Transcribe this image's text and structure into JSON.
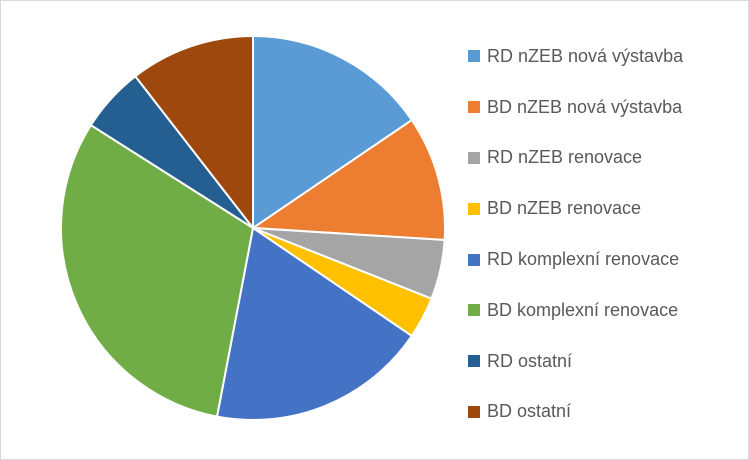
{
  "chart_data": {
    "type": "pie",
    "title": "",
    "legend_position": "right",
    "series": [
      {
        "name": "RD nZEB nová výstavba",
        "value": 15.5,
        "color": "#5b9bd5"
      },
      {
        "name": "BD nZEB nová výstavba",
        "value": 10.5,
        "color": "#ed7d31"
      },
      {
        "name": "RD nZEB renovace",
        "value": 5.0,
        "color": "#a5a5a5"
      },
      {
        "name": "BD nZEB renovace",
        "value": 3.5,
        "color": "#ffc000"
      },
      {
        "name": "RD komplexní renovace",
        "value": 18.5,
        "color": "#4472c4"
      },
      {
        "name": "BD komplexní renovace",
        "value": 31.0,
        "color": "#70ad47"
      },
      {
        "name": "RD ostatní",
        "value": 5.5,
        "color": "#255e91"
      },
      {
        "name": "BD ostatní",
        "value": 10.5,
        "color": "#9e480e"
      }
    ]
  }
}
